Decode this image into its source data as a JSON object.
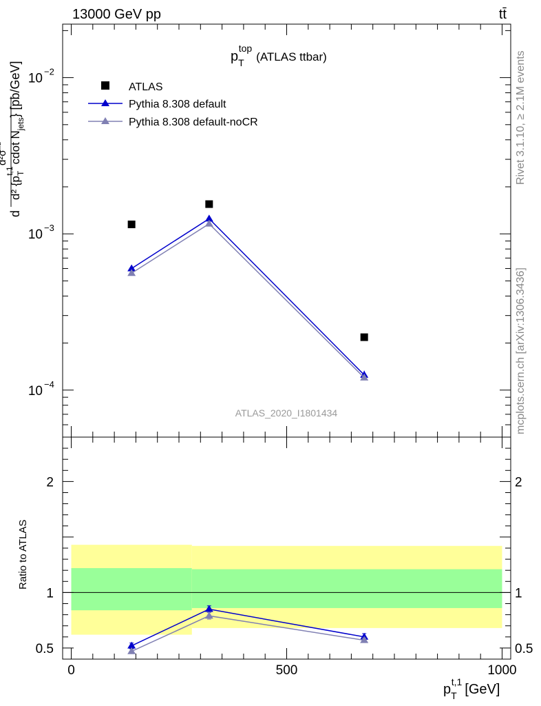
{
  "header": {
    "energy_label": "13000 GeV pp",
    "process_label": "tt̄"
  },
  "side_labels": {
    "rivet": "Rivet 3.1.10, ≥ 2.1M events",
    "source": "mcplots.cern.ch [arXiv:1306.3436]"
  },
  "colors": {
    "atlas": "#000000",
    "pythia_default": "#0000cc",
    "pythia_nocr": "#8080b3",
    "band_inner": "#99ff99",
    "band_outer": "#ffff99",
    "analysis_tag": "#999999"
  },
  "chart_data": [
    {
      "type": "scatter",
      "panel": "main",
      "title": "p_T^top (ATLAS ttbar)",
      "title_main": "p",
      "title_sub": "T",
      "title_sup": "top",
      "title_rest": "(ATLAS ttbar)",
      "ylabel": "d d²σ^fid / d² {p_T^{t,1} cdot N_jets} [pb/GeV]",
      "ylabel_front": "d",
      "ylabel_num": "d²σ",
      "ylabel_num_sup": "fid",
      "ylabel_den": "d² {p",
      "ylabel_den_sub": "T",
      "ylabel_den_sup": "t,1",
      "ylabel_den_rest": "cdot N",
      "ylabel_den_sub2": "jets",
      "ylabel_tail": "} [pb/GeV]",
      "yscale": "log",
      "ylim": [
        5e-05,
        0.022
      ],
      "xlim": [
        -20,
        1020
      ],
      "ytick_labels": [
        {
          "value": 0.0001,
          "base": "10",
          "exp": "−4"
        },
        {
          "value": 0.001,
          "base": "10",
          "exp": "−3"
        },
        {
          "value": 0.01,
          "base": "10",
          "exp": "−2"
        }
      ],
      "analysis_tag": "ATLAS_2020_I1801434",
      "legend_position": "top-left",
      "series": [
        {
          "name": "ATLAS",
          "marker": "square",
          "x": [
            140,
            320,
            680
          ],
          "y": [
            0.00115,
            0.00155,
            0.000218
          ]
        },
        {
          "name": "Pythia 8.308 default",
          "marker": "triangle",
          "x": [
            140,
            320,
            680
          ],
          "y": [
            0.0006,
            0.00125,
            0.000125
          ],
          "yerr": [
            2e-05,
            6e-05,
            8e-06
          ]
        },
        {
          "name": "Pythia 8.308 default-noCR",
          "marker": "triangle",
          "x": [
            140,
            320,
            680
          ],
          "y": [
            0.00056,
            0.00116,
            0.00012
          ]
        }
      ]
    },
    {
      "type": "line",
      "panel": "ratio",
      "ylabel": "Ratio to ATLAS",
      "xlabel": "p_T^{t,1} [GeV]",
      "xlabel_main": "p",
      "xlabel_sub": "T",
      "xlabel_sup": "t,1",
      "xlabel_rest": "[GeV]",
      "ylim": [
        0.4,
        2.4
      ],
      "xlim": [
        -20,
        1020
      ],
      "yticks": [
        0.5,
        1,
        2
      ],
      "ytick_labels": [
        "0.5",
        "1",
        "2"
      ],
      "xticks": [
        0,
        500,
        1000
      ],
      "xtick_labels": [
        "0",
        "500",
        "1000"
      ],
      "bands": [
        {
          "x0": 0,
          "x1": 280,
          "outer": [
            0.62,
            1.43
          ],
          "inner": [
            0.84,
            1.22
          ]
        },
        {
          "x0": 280,
          "x1": 1000,
          "outer": [
            0.68,
            1.42
          ],
          "inner": [
            0.86,
            1.21
          ]
        }
      ],
      "series": [
        {
          "name": "Pythia 8.308 default",
          "x": [
            140,
            320,
            680
          ],
          "y": [
            0.52,
            0.85,
            0.6
          ],
          "yerr": [
            0.025,
            0.03,
            0.03
          ]
        },
        {
          "name": "Pythia 8.308 default-noCR",
          "x": [
            140,
            320,
            680
          ],
          "y": [
            0.47,
            0.79,
            0.57
          ],
          "yerr": [
            0.02,
            0.03,
            0.02
          ]
        }
      ]
    }
  ]
}
